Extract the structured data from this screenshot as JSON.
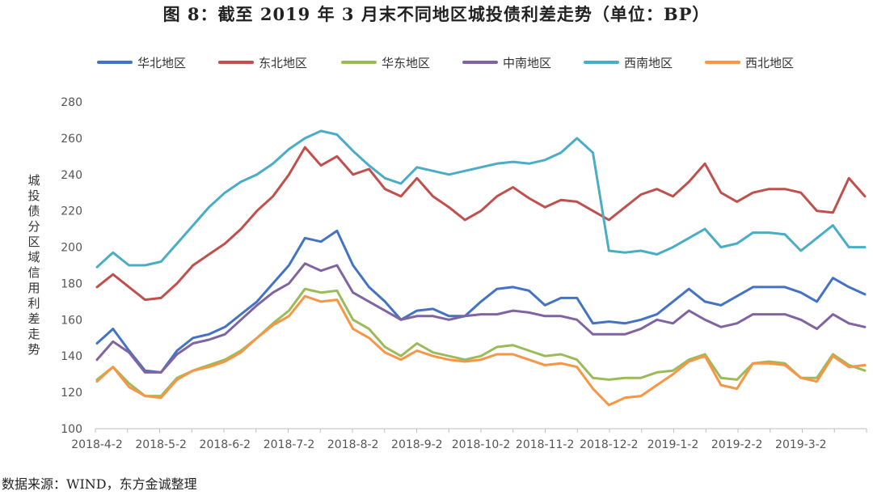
{
  "chart_data": {
    "type": "line",
    "title": "图 8：截至 2019 年 3 月末不同地区城投债利差走势（单位：BP）",
    "xlabel": "",
    "ylabel": "城投债分区域信用利差走势",
    "ylim": [
      100,
      280
    ],
    "yticks": [
      "100",
      "120",
      "140",
      "160",
      "180",
      "200",
      "220",
      "240",
      "260",
      "280"
    ],
    "xticks": [
      "2018-4-2",
      "2018-5-2",
      "2018-6-2",
      "2018-7-2",
      "2018-8-2",
      "2018-9-2",
      "2018-10-2",
      "2018-11-2",
      "2018-12-2",
      "2019-1-2",
      "2019-2-2",
      "2019-3-2"
    ],
    "x": [
      "2018-4-2",
      "2018-4-9",
      "2018-4-16",
      "2018-4-23",
      "2018-5-2",
      "2018-5-9",
      "2018-5-16",
      "2018-5-23",
      "2018-6-2",
      "2018-6-9",
      "2018-6-16",
      "2018-6-23",
      "2018-7-2",
      "2018-7-9",
      "2018-7-16",
      "2018-7-23",
      "2018-8-2",
      "2018-8-9",
      "2018-8-16",
      "2018-8-23",
      "2018-9-2",
      "2018-9-9",
      "2018-9-16",
      "2018-9-23",
      "2018-10-2",
      "2018-10-9",
      "2018-10-16",
      "2018-10-23",
      "2018-11-2",
      "2018-11-9",
      "2018-11-16",
      "2018-11-23",
      "2018-12-2",
      "2018-12-9",
      "2018-12-16",
      "2018-12-23",
      "2019-1-2",
      "2019-1-9",
      "2019-1-16",
      "2019-1-23",
      "2019-2-2",
      "2019-2-9",
      "2019-2-16",
      "2019-2-23",
      "2019-3-2",
      "2019-3-9",
      "2019-3-16",
      "2019-3-23",
      "2019-3-29"
    ],
    "series": [
      {
        "name": "华北地区",
        "color": "#4472C4",
        "values": [
          147,
          155,
          143,
          132,
          131,
          143,
          150,
          152,
          156,
          163,
          170,
          180,
          190,
          205,
          203,
          209,
          190,
          178,
          170,
          160,
          165,
          166,
          162,
          162,
          170,
          177,
          178,
          176,
          168,
          172,
          172,
          158,
          159,
          158,
          160,
          163,
          170,
          177,
          170,
          168,
          173,
          178,
          178,
          178,
          175,
          170,
          183,
          178,
          174
        ]
      },
      {
        "name": "东北地区",
        "color": "#C0504D",
        "values": [
          178,
          185,
          178,
          171,
          172,
          180,
          190,
          196,
          202,
          210,
          220,
          228,
          240,
          255,
          245,
          250,
          240,
          243,
          232,
          228,
          238,
          228,
          222,
          215,
          220,
          228,
          233,
          227,
          222,
          226,
          225,
          220,
          215,
          222,
          229,
          232,
          228,
          236,
          246,
          230,
          225,
          230,
          232,
          232,
          230,
          220,
          219,
          238,
          228
        ]
      },
      {
        "name": "华东地区",
        "color": "#9BBB59",
        "values": [
          127,
          134,
          125,
          118,
          118,
          128,
          132,
          135,
          138,
          143,
          150,
          158,
          165,
          177,
          175,
          176,
          160,
          155,
          145,
          140,
          147,
          142,
          140,
          138,
          140,
          145,
          146,
          143,
          140,
          141,
          138,
          128,
          127,
          128,
          128,
          131,
          132,
          138,
          141,
          128,
          127,
          136,
          137,
          136,
          128,
          128,
          141,
          135,
          132
        ]
      },
      {
        "name": "中南地区",
        "color": "#8064A2",
        "values": [
          138,
          148,
          142,
          131,
          131,
          141,
          147,
          149,
          152,
          160,
          168,
          175,
          180,
          191,
          187,
          190,
          175,
          170,
          165,
          160,
          162,
          162,
          160,
          162,
          163,
          163,
          165,
          164,
          162,
          162,
          160,
          152,
          152,
          152,
          155,
          160,
          158,
          165,
          160,
          156,
          158,
          163,
          163,
          163,
          160,
          155,
          163,
          158,
          156
        ]
      },
      {
        "name": "西南地区",
        "color": "#4BACC6",
        "values": [
          189,
          197,
          190,
          190,
          192,
          202,
          212,
          222,
          230,
          236,
          240,
          246,
          254,
          260,
          264,
          262,
          253,
          245,
          238,
          235,
          244,
          242,
          240,
          242,
          244,
          246,
          247,
          246,
          248,
          252,
          260,
          252,
          198,
          197,
          198,
          196,
          200,
          205,
          210,
          200,
          202,
          208,
          208,
          207,
          198,
          205,
          212,
          200,
          200
        ]
      },
      {
        "name": "西北地区",
        "color": "#F79646",
        "values": [
          126,
          134,
          123,
          118,
          117,
          127,
          132,
          134,
          137,
          142,
          150,
          157,
          162,
          173,
          170,
          171,
          155,
          150,
          142,
          138,
          143,
          140,
          138,
          137,
          138,
          141,
          141,
          138,
          135,
          136,
          134,
          122,
          113,
          117,
          118,
          124,
          130,
          137,
          140,
          124,
          122,
          136,
          136,
          135,
          128,
          126,
          140,
          134,
          135
        ]
      }
    ]
  },
  "source_text": "数据来源：WIND，东方金诚整理"
}
